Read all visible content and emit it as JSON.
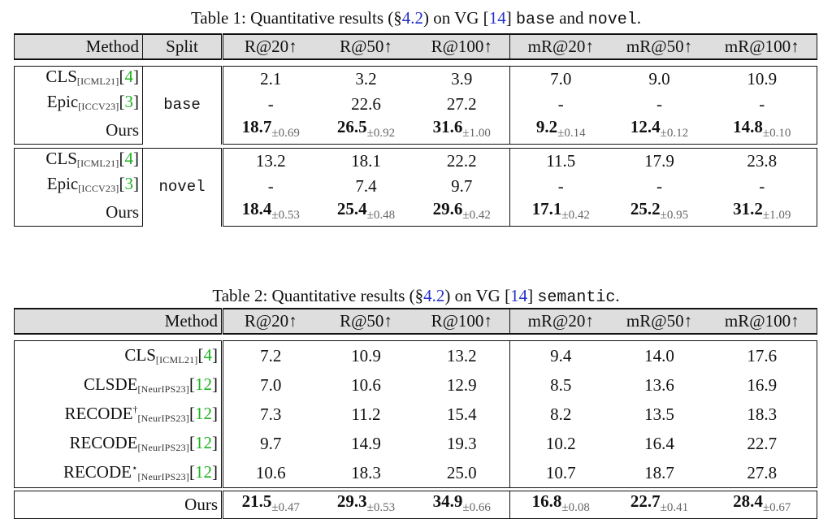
{
  "table1": {
    "caption": {
      "prefix": "Table 1: Quantitative results (§",
      "section": "4.2",
      "mid": ") on VG [",
      "ref": "14",
      "after_ref": "] ",
      "split_a": "base",
      "and": " and ",
      "split_b": "novel",
      "end": "."
    },
    "headers": [
      "Method",
      "Split",
      "R@20↑",
      "R@50↑",
      "R@100↑",
      "mR@20↑",
      "mR@50↑",
      "mR@100↑"
    ],
    "groups": [
      {
        "split": "base",
        "rows": [
          {
            "name": "CLS",
            "venue": "[ICML21]",
            "cite": "4",
            "values": [
              "2.1",
              "3.2",
              "3.9",
              "7.0",
              "9.0",
              "10.9"
            ],
            "stds": [
              "",
              "",
              "",
              "",
              "",
              ""
            ]
          },
          {
            "name": "Epic",
            "venue": "[ICCV23]",
            "cite": "3",
            "values": [
              "-",
              "22.6",
              "27.2",
              "-",
              "-",
              "-"
            ],
            "stds": [
              "",
              "",
              "",
              "",
              "",
              ""
            ]
          },
          {
            "name": "Ours",
            "venue": "",
            "cite": "",
            "values": [
              "18.7",
              "26.5",
              "31.6",
              "9.2",
              "12.4",
              "14.8"
            ],
            "stds": [
              "±0.69",
              "±0.92",
              "±1.00",
              "±0.14",
              "±0.12",
              "±0.10"
            ]
          }
        ]
      },
      {
        "split": "novel",
        "rows": [
          {
            "name": "CLS",
            "venue": "[ICML21]",
            "cite": "4",
            "values": [
              "13.2",
              "18.1",
              "22.2",
              "11.5",
              "17.9",
              "23.8"
            ],
            "stds": [
              "",
              "",
              "",
              "",
              "",
              ""
            ]
          },
          {
            "name": "Epic",
            "venue": "[ICCV23]",
            "cite": "3",
            "values": [
              "-",
              "7.4",
              "9.7",
              "-",
              "-",
              "-"
            ],
            "stds": [
              "",
              "",
              "",
              "",
              "",
              ""
            ]
          },
          {
            "name": "Ours",
            "venue": "",
            "cite": "",
            "values": [
              "18.4",
              "25.4",
              "29.6",
              "17.1",
              "25.2",
              "31.2"
            ],
            "stds": [
              "±0.53",
              "±0.48",
              "±0.42",
              "±0.42",
              "±0.95",
              "±1.09"
            ]
          }
        ]
      }
    ]
  },
  "table2": {
    "caption": {
      "prefix": "Table 2: Quantitative results (§",
      "section": "4.2",
      "mid": ") on VG [",
      "ref": "14",
      "after_ref": "] ",
      "split": "semantic",
      "end": "."
    },
    "headers": [
      "Method",
      "R@20↑",
      "R@50↑",
      "R@100↑",
      "mR@20↑",
      "mR@50↑",
      "mR@100↑"
    ],
    "rows": [
      {
        "name": "CLS",
        "mark": "",
        "venue": "[ICML21]",
        "cite": "4",
        "values": [
          "7.2",
          "10.9",
          "13.2",
          "9.4",
          "14.0",
          "17.6"
        ]
      },
      {
        "name": "CLSDE",
        "mark": "",
        "venue": "[NeurIPS23]",
        "cite": "12",
        "values": [
          "7.0",
          "10.6",
          "12.9",
          "8.5",
          "13.6",
          "16.9"
        ]
      },
      {
        "name": "RECODE",
        "mark": "†",
        "venue": "[NeurIPS23]",
        "cite": "12",
        "values": [
          "7.3",
          "11.2",
          "15.4",
          "8.2",
          "13.5",
          "18.3"
        ]
      },
      {
        "name": "RECODE",
        "mark": "",
        "venue": "[NeurIPS23]",
        "cite": "12",
        "values": [
          "9.7",
          "14.9",
          "19.3",
          "10.2",
          "16.4",
          "22.7"
        ]
      },
      {
        "name": "RECODE",
        "mark": "⋆",
        "venue": "[NeurIPS23]",
        "cite": "12",
        "values": [
          "10.6",
          "18.3",
          "25.0",
          "10.7",
          "18.7",
          "27.8"
        ]
      }
    ],
    "ours": {
      "name": "Ours",
      "values": [
        "21.5",
        "29.3",
        "34.9",
        "16.8",
        "22.7",
        "28.4"
      ],
      "stds": [
        "±0.47",
        "±0.53",
        "±0.66",
        "±0.08",
        "±0.41",
        "±0.67"
      ]
    }
  }
}
